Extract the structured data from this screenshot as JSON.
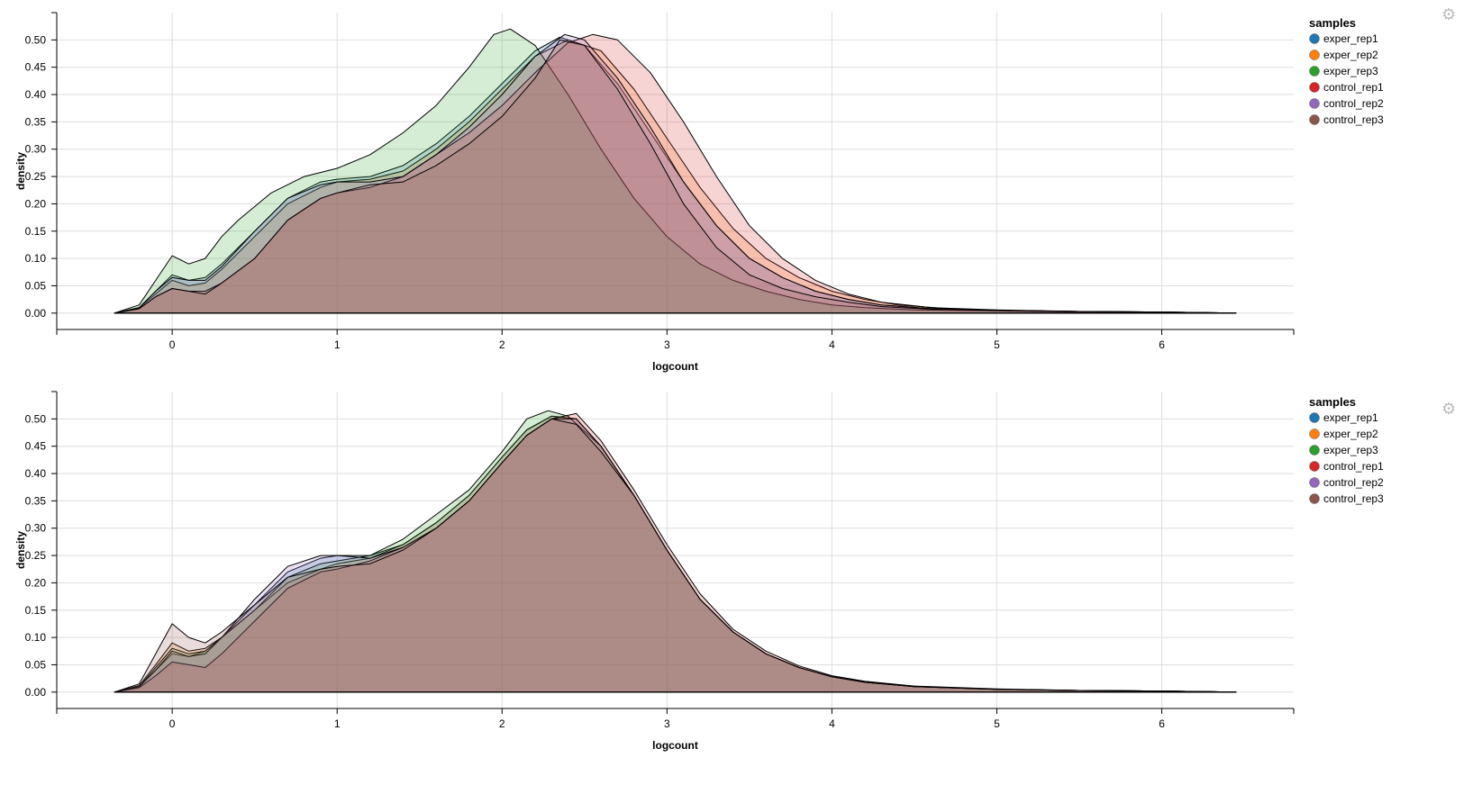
{
  "series_names": [
    "exper_rep1",
    "exper_rep2",
    "exper_rep3",
    "control_rep1",
    "control_rep2",
    "control_rep3"
  ],
  "series_colors": [
    "#1f77b4",
    "#ff7f0e",
    "#2ca02c",
    "#d62728",
    "#9467bd",
    "#8c564b"
  ],
  "gear_icon": "gear-icon",
  "chart_data": [
    {
      "type": "area",
      "xlabel": "logcount",
      "ylabel": "density",
      "legend_title": "samples",
      "legend_position": "right",
      "xlim": [
        -0.7,
        6.8
      ],
      "ylim": [
        -0.03,
        0.55
      ],
      "xticks": [
        0,
        1,
        2,
        3,
        4,
        5,
        6
      ],
      "yticks": [
        0.0,
        0.05,
        0.1,
        0.15,
        0.2,
        0.25,
        0.3,
        0.35,
        0.4,
        0.45,
        0.5
      ],
      "grid": true,
      "series": [
        {
          "name": "exper_rep1",
          "x": [
            -0.35,
            -0.2,
            -0.1,
            0,
            0.1,
            0.2,
            0.3,
            0.5,
            0.7,
            0.9,
            1.0,
            1.2,
            1.4,
            1.6,
            1.8,
            2.0,
            2.2,
            2.35,
            2.5,
            2.7,
            2.9,
            3.1,
            3.3,
            3.5,
            3.7,
            3.9,
            4.1,
            4.3,
            4.6,
            5.0,
            5.5,
            6.0,
            6.45
          ],
          "y": [
            0.0,
            0.01,
            0.04,
            0.07,
            0.06,
            0.065,
            0.09,
            0.15,
            0.21,
            0.24,
            0.245,
            0.25,
            0.27,
            0.31,
            0.36,
            0.42,
            0.48,
            0.505,
            0.49,
            0.42,
            0.33,
            0.24,
            0.16,
            0.1,
            0.065,
            0.04,
            0.025,
            0.015,
            0.008,
            0.005,
            0.003,
            0.002,
            0.0
          ]
        },
        {
          "name": "exper_rep2",
          "x": [
            -0.35,
            -0.2,
            -0.1,
            0,
            0.1,
            0.2,
            0.3,
            0.5,
            0.7,
            0.9,
            1.0,
            1.2,
            1.4,
            1.6,
            1.8,
            2.0,
            2.2,
            2.4,
            2.6,
            2.8,
            3.0,
            3.2,
            3.4,
            3.6,
            3.8,
            4.0,
            4.2,
            4.4,
            4.7,
            5.0,
            5.5,
            6.0,
            6.45
          ],
          "y": [
            0.0,
            0.01,
            0.035,
            0.06,
            0.05,
            0.055,
            0.08,
            0.14,
            0.2,
            0.23,
            0.24,
            0.245,
            0.26,
            0.3,
            0.35,
            0.41,
            0.47,
            0.5,
            0.48,
            0.41,
            0.32,
            0.23,
            0.155,
            0.1,
            0.065,
            0.04,
            0.025,
            0.015,
            0.008,
            0.005,
            0.003,
            0.002,
            0.0
          ]
        },
        {
          "name": "exper_rep3",
          "x": [
            -0.35,
            -0.2,
            -0.1,
            0,
            0.1,
            0.2,
            0.3,
            0.4,
            0.6,
            0.8,
            1.0,
            1.2,
            1.4,
            1.6,
            1.8,
            1.95,
            2.05,
            2.2,
            2.4,
            2.6,
            2.8,
            3.0,
            3.2,
            3.4,
            3.6,
            3.8,
            4.0,
            4.2,
            4.5,
            5.0,
            5.5,
            6.0,
            6.45
          ],
          "y": [
            0.0,
            0.015,
            0.06,
            0.105,
            0.09,
            0.1,
            0.14,
            0.17,
            0.22,
            0.25,
            0.265,
            0.29,
            0.33,
            0.38,
            0.45,
            0.51,
            0.52,
            0.49,
            0.4,
            0.3,
            0.21,
            0.14,
            0.09,
            0.06,
            0.04,
            0.025,
            0.015,
            0.01,
            0.006,
            0.004,
            0.002,
            0.001,
            0.0
          ]
        },
        {
          "name": "control_rep1",
          "x": [
            -0.35,
            -0.2,
            -0.1,
            0,
            0.1,
            0.2,
            0.3,
            0.5,
            0.7,
            0.9,
            1.0,
            1.2,
            1.4,
            1.6,
            1.8,
            2.0,
            2.2,
            2.4,
            2.55,
            2.7,
            2.9,
            3.1,
            3.3,
            3.5,
            3.7,
            3.9,
            4.1,
            4.3,
            4.6,
            5.0,
            5.5,
            6.0,
            6.45
          ],
          "y": [
            0.0,
            0.008,
            0.03,
            0.045,
            0.04,
            0.04,
            0.055,
            0.1,
            0.17,
            0.21,
            0.22,
            0.23,
            0.25,
            0.29,
            0.33,
            0.38,
            0.44,
            0.495,
            0.51,
            0.5,
            0.44,
            0.35,
            0.25,
            0.16,
            0.1,
            0.06,
            0.035,
            0.02,
            0.01,
            0.006,
            0.003,
            0.002,
            0.0
          ]
        },
        {
          "name": "control_rep2",
          "x": [
            -0.35,
            -0.2,
            -0.1,
            0,
            0.1,
            0.2,
            0.3,
            0.5,
            0.7,
            0.9,
            1.0,
            1.2,
            1.4,
            1.6,
            1.8,
            2.0,
            2.2,
            2.38,
            2.5,
            2.7,
            2.9,
            3.1,
            3.3,
            3.5,
            3.7,
            3.9,
            4.1,
            4.3,
            4.6,
            5.0,
            5.5,
            6.0,
            6.45
          ],
          "y": [
            0.0,
            0.01,
            0.04,
            0.065,
            0.06,
            0.06,
            0.085,
            0.15,
            0.21,
            0.235,
            0.24,
            0.24,
            0.25,
            0.29,
            0.34,
            0.4,
            0.47,
            0.51,
            0.5,
            0.43,
            0.34,
            0.24,
            0.16,
            0.1,
            0.065,
            0.04,
            0.025,
            0.015,
            0.008,
            0.005,
            0.003,
            0.002,
            0.0
          ]
        },
        {
          "name": "control_rep3",
          "x": [
            -0.35,
            -0.2,
            -0.1,
            0,
            0.1,
            0.2,
            0.3,
            0.5,
            0.7,
            0.9,
            1.0,
            1.2,
            1.4,
            1.6,
            1.8,
            2.0,
            2.2,
            2.35,
            2.5,
            2.7,
            2.9,
            3.1,
            3.3,
            3.5,
            3.7,
            3.9,
            4.1,
            4.3,
            4.6,
            5.0,
            5.5,
            6.0,
            6.45
          ],
          "y": [
            0.0,
            0.008,
            0.03,
            0.045,
            0.04,
            0.035,
            0.055,
            0.1,
            0.17,
            0.21,
            0.22,
            0.235,
            0.24,
            0.27,
            0.31,
            0.36,
            0.43,
            0.5,
            0.49,
            0.41,
            0.31,
            0.2,
            0.12,
            0.07,
            0.045,
            0.03,
            0.02,
            0.012,
            0.007,
            0.005,
            0.003,
            0.002,
            0.0
          ]
        }
      ]
    },
    {
      "type": "area",
      "xlabel": "logcount",
      "ylabel": "density",
      "legend_title": "samples",
      "legend_position": "right",
      "xlim": [
        -0.7,
        6.8
      ],
      "ylim": [
        -0.03,
        0.55
      ],
      "xticks": [
        0,
        1,
        2,
        3,
        4,
        5,
        6
      ],
      "yticks": [
        0.0,
        0.05,
        0.1,
        0.15,
        0.2,
        0.25,
        0.3,
        0.35,
        0.4,
        0.45,
        0.5
      ],
      "grid": true,
      "series": [
        {
          "name": "exper_rep1",
          "x": [
            -0.35,
            -0.2,
            -0.1,
            0,
            0.1,
            0.2,
            0.3,
            0.5,
            0.7,
            0.9,
            1.0,
            1.2,
            1.4,
            1.6,
            1.8,
            2.0,
            2.15,
            2.3,
            2.45,
            2.6,
            2.8,
            3.0,
            3.2,
            3.4,
            3.6,
            3.8,
            4.0,
            4.2,
            4.5,
            5.0,
            5.5,
            6.0,
            6.45
          ],
          "y": [
            0.0,
            0.01,
            0.04,
            0.07,
            0.065,
            0.075,
            0.1,
            0.16,
            0.22,
            0.245,
            0.25,
            0.25,
            0.27,
            0.31,
            0.36,
            0.43,
            0.48,
            0.505,
            0.5,
            0.45,
            0.36,
            0.26,
            0.17,
            0.11,
            0.07,
            0.045,
            0.028,
            0.018,
            0.01,
            0.005,
            0.003,
            0.002,
            0.0
          ]
        },
        {
          "name": "exper_rep2",
          "x": [
            -0.35,
            -0.2,
            -0.1,
            0,
            0.1,
            0.2,
            0.3,
            0.5,
            0.7,
            0.9,
            1.0,
            1.2,
            1.4,
            1.6,
            1.8,
            2.0,
            2.15,
            2.3,
            2.45,
            2.6,
            2.8,
            3.0,
            3.2,
            3.4,
            3.6,
            3.8,
            4.0,
            4.2,
            4.5,
            5.0,
            5.5,
            6.0,
            6.45
          ],
          "y": [
            0.0,
            0.012,
            0.05,
            0.09,
            0.075,
            0.08,
            0.1,
            0.15,
            0.2,
            0.225,
            0.235,
            0.245,
            0.27,
            0.31,
            0.36,
            0.43,
            0.48,
            0.505,
            0.5,
            0.45,
            0.36,
            0.26,
            0.17,
            0.11,
            0.07,
            0.045,
            0.028,
            0.018,
            0.01,
            0.005,
            0.003,
            0.002,
            0.0
          ]
        },
        {
          "name": "exper_rep3",
          "x": [
            -0.35,
            -0.2,
            -0.1,
            0,
            0.1,
            0.2,
            0.3,
            0.5,
            0.7,
            0.9,
            1.0,
            1.2,
            1.4,
            1.6,
            1.8,
            2.0,
            2.15,
            2.28,
            2.4,
            2.6,
            2.8,
            3.0,
            3.2,
            3.4,
            3.6,
            3.8,
            4.0,
            4.2,
            4.5,
            5.0,
            5.5,
            6.0,
            6.45
          ],
          "y": [
            0.0,
            0.01,
            0.045,
            0.08,
            0.07,
            0.075,
            0.1,
            0.15,
            0.21,
            0.235,
            0.24,
            0.25,
            0.28,
            0.325,
            0.37,
            0.44,
            0.5,
            0.515,
            0.505,
            0.45,
            0.36,
            0.26,
            0.17,
            0.11,
            0.07,
            0.045,
            0.028,
            0.018,
            0.01,
            0.005,
            0.003,
            0.002,
            0.0
          ]
        },
        {
          "name": "control_rep1",
          "x": [
            -0.35,
            -0.2,
            -0.1,
            0,
            0.1,
            0.2,
            0.3,
            0.5,
            0.7,
            0.9,
            1.0,
            1.2,
            1.4,
            1.6,
            1.8,
            2.0,
            2.15,
            2.3,
            2.45,
            2.6,
            2.8,
            3.0,
            3.2,
            3.4,
            3.6,
            3.8,
            4.0,
            4.2,
            4.5,
            5.0,
            5.5,
            6.0,
            6.45
          ],
          "y": [
            0.0,
            0.008,
            0.03,
            0.055,
            0.05,
            0.045,
            0.07,
            0.13,
            0.19,
            0.22,
            0.225,
            0.24,
            0.265,
            0.3,
            0.35,
            0.42,
            0.47,
            0.5,
            0.51,
            0.46,
            0.37,
            0.27,
            0.18,
            0.115,
            0.075,
            0.048,
            0.03,
            0.02,
            0.011,
            0.006,
            0.003,
            0.002,
            0.0
          ]
        },
        {
          "name": "control_rep2",
          "x": [
            -0.35,
            -0.2,
            -0.1,
            0,
            0.1,
            0.2,
            0.3,
            0.5,
            0.7,
            0.9,
            1.0,
            1.2,
            1.4,
            1.6,
            1.8,
            2.0,
            2.15,
            2.3,
            2.45,
            2.6,
            2.8,
            3.0,
            3.2,
            3.4,
            3.6,
            3.8,
            4.0,
            4.2,
            4.5,
            5.0,
            5.5,
            6.0,
            6.45
          ],
          "y": [
            0.0,
            0.01,
            0.04,
            0.075,
            0.065,
            0.07,
            0.1,
            0.17,
            0.23,
            0.25,
            0.25,
            0.245,
            0.265,
            0.3,
            0.35,
            0.42,
            0.47,
            0.5,
            0.5,
            0.45,
            0.36,
            0.26,
            0.17,
            0.11,
            0.07,
            0.045,
            0.028,
            0.018,
            0.01,
            0.005,
            0.003,
            0.002,
            0.0
          ]
        },
        {
          "name": "control_rep3",
          "x": [
            -0.35,
            -0.2,
            -0.1,
            0,
            0.1,
            0.2,
            0.3,
            0.5,
            0.7,
            0.9,
            1.0,
            1.2,
            1.4,
            1.6,
            1.8,
            2.0,
            2.15,
            2.3,
            2.45,
            2.6,
            2.8,
            3.0,
            3.2,
            3.4,
            3.6,
            3.8,
            4.0,
            4.2,
            4.5,
            5.0,
            5.5,
            6.0,
            6.45
          ],
          "y": [
            0.0,
            0.015,
            0.07,
            0.125,
            0.1,
            0.09,
            0.11,
            0.16,
            0.21,
            0.225,
            0.23,
            0.235,
            0.26,
            0.3,
            0.35,
            0.42,
            0.47,
            0.5,
            0.49,
            0.44,
            0.36,
            0.26,
            0.17,
            0.11,
            0.07,
            0.045,
            0.028,
            0.018,
            0.01,
            0.005,
            0.003,
            0.002,
            0.0
          ]
        }
      ]
    }
  ]
}
